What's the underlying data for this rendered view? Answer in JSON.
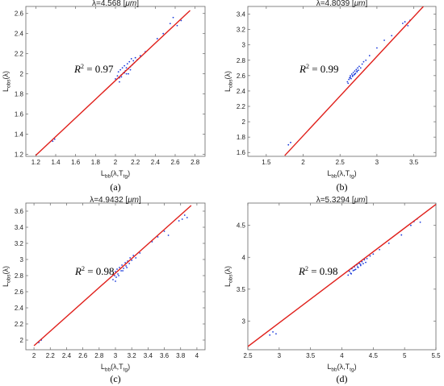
{
  "chart_data": [
    {
      "type": "scatter",
      "title_prefix": "λ=4.568",
      "title_unit": "μm",
      "xlabel": "L",
      "xlabel_sub": "bb",
      "xlabel_args": "(λ,T",
      "xlabel_args_sub": "tg",
      "ylabel": "L",
      "ylabel_sub": "obs",
      "ylabel_args": "(λ)",
      "xlim": [
        1.1,
        2.9
      ],
      "ylim": [
        1.18,
        2.67
      ],
      "xticks": [
        1.2,
        1.4,
        1.6,
        1.8,
        2,
        2.2,
        2.4,
        2.6,
        2.8
      ],
      "yticks": [
        1.2,
        1.4,
        1.6,
        1.8,
        2,
        2.2,
        2.4,
        2.6
      ],
      "xtick_labels": [
        "1.2",
        "1.4",
        "1.6",
        "1.8",
        "2",
        "2.2",
        "2.4",
        "2.6",
        "2.8"
      ],
      "ytick_labels": [
        "1.2",
        "1.4",
        "1.6",
        "1.8",
        "2",
        "2.2",
        "2.4",
        "2.6"
      ],
      "r2_label": "R",
      "r2_exp": "2",
      "r2_value": " = 0.97",
      "caption": "(a)",
      "fit_line": {
        "x": [
          1.2,
          2.75
        ],
        "y": [
          1.19,
          2.63
        ]
      },
      "series": [
        {
          "x": [
            1.37,
            1.39,
            2.0,
            2.02,
            2.03,
            2.04,
            2.05,
            2.06,
            2.07,
            2.08,
            2.09,
            2.1,
            2.11,
            2.12,
            2.13,
            2.14,
            2.15,
            2.16,
            2.17,
            2.18,
            2.19,
            2.2,
            2.22,
            2.25,
            2.3,
            2.42,
            2.48,
            2.55,
            2.58,
            2.62,
            2.66,
            2.04,
            2.06,
            2.09,
            2.11,
            2.13,
            2.15
          ],
          "y": [
            1.33,
            1.35,
            1.95,
            1.98,
            2.02,
            1.96,
            2.04,
            1.99,
            2.06,
            2.01,
            2.08,
            2.03,
            2.0,
            2.1,
            2.05,
            2.12,
            2.07,
            2.15,
            2.09,
            2.13,
            2.11,
            2.16,
            2.14,
            2.18,
            2.22,
            2.35,
            2.4,
            2.5,
            2.56,
            2.48,
            2.53,
            1.92,
            1.97,
            2.01,
            2.06,
            2.0,
            2.04
          ]
        }
      ]
    },
    {
      "type": "scatter",
      "title_prefix": "λ=4.8039",
      "title_unit": "μm",
      "xlabel": "L",
      "xlabel_sub": "bb",
      "xlabel_args": "(λ,T",
      "xlabel_args_sub": "tg",
      "ylabel": "L",
      "ylabel_sub": "obs",
      "ylabel_args": "(λ)",
      "xlim": [
        1.25,
        3.8
      ],
      "ylim": [
        1.55,
        3.5
      ],
      "xticks": [
        1.5,
        2,
        2.5,
        3,
        3.5
      ],
      "yticks": [
        1.6,
        1.8,
        2,
        2.2,
        2.4,
        2.6,
        2.8,
        3,
        3.2,
        3.4
      ],
      "xtick_labels": [
        "1.5",
        "2",
        "2.5",
        "3",
        "3.5"
      ],
      "ytick_labels": [
        "1.6",
        "1.8",
        "2",
        "2.2",
        "2.4",
        "2.6",
        "2.8",
        "3",
        "3.2",
        "3.4"
      ],
      "r2_label": "R",
      "r2_exp": "2",
      "r2_value": " = 0.99",
      "caption": "(b)",
      "fit_line": {
        "x": [
          1.75,
          3.63
        ],
        "y": [
          1.56,
          3.5
        ]
      },
      "series": [
        {
          "x": [
            1.8,
            1.83,
            2.6,
            2.62,
            2.63,
            2.64,
            2.65,
            2.66,
            2.67,
            2.68,
            2.69,
            2.7,
            2.71,
            2.72,
            2.73,
            2.74,
            2.75,
            2.76,
            2.78,
            2.8,
            2.82,
            2.85,
            2.9,
            3.0,
            3.1,
            3.2,
            3.35,
            3.38,
            3.42,
            3.45,
            2.61,
            2.64,
            2.67,
            2.7,
            2.73
          ],
          "y": [
            1.7,
            1.73,
            2.52,
            2.55,
            2.57,
            2.6,
            2.56,
            2.62,
            2.59,
            2.64,
            2.61,
            2.66,
            2.63,
            2.68,
            2.65,
            2.7,
            2.67,
            2.72,
            2.7,
            2.75,
            2.78,
            2.8,
            2.86,
            2.96,
            3.06,
            3.12,
            3.28,
            3.3,
            3.25,
            3.32,
            2.5,
            2.58,
            2.6,
            2.62,
            2.66
          ]
        }
      ]
    },
    {
      "type": "scatter",
      "title_prefix": "λ=4.9432",
      "title_unit": "μm",
      "xlabel": "L",
      "xlabel_sub": "bb",
      "xlabel_args": "(λ,T",
      "xlabel_args_sub": "tg",
      "ylabel": "L",
      "ylabel_sub": "obs",
      "ylabel_args": "(λ)",
      "xlim": [
        1.9,
        4.1
      ],
      "ylim": [
        1.88,
        3.7
      ],
      "xticks": [
        2,
        2.2,
        2.4,
        2.6,
        2.8,
        3,
        3.2,
        3.4,
        3.6,
        3.8,
        4
      ],
      "yticks": [
        2,
        2.2,
        2.4,
        2.6,
        2.8,
        3,
        3.2,
        3.4,
        3.6
      ],
      "xtick_labels": [
        "2",
        "2.2",
        "2.4",
        "2.6",
        "2.8",
        "3",
        "3.2",
        "3.4",
        "3.6",
        "3.8",
        "4"
      ],
      "ytick_labels": [
        "2",
        "2.2",
        "2.4",
        "2.6",
        "2.8",
        "3",
        "3.2",
        "3.4",
        "3.6"
      ],
      "r2_label": "R",
      "r2_exp": "2",
      "r2_value": " = 0.98",
      "caption": "(c)",
      "fit_line": {
        "x": [
          2.0,
          3.93
        ],
        "y": [
          1.93,
          3.67
        ]
      },
      "series": [
        {
          "x": [
            2.06,
            2.09,
            2.97,
            2.99,
            3.0,
            3.01,
            3.02,
            3.03,
            3.05,
            3.07,
            3.08,
            3.1,
            3.12,
            3.13,
            3.15,
            3.17,
            3.18,
            3.2,
            3.22,
            3.25,
            3.3,
            3.45,
            3.52,
            3.6,
            3.65,
            3.78,
            3.82,
            3.85,
            3.88,
            3.0,
            3.04,
            3.09,
            3.14
          ],
          "y": [
            1.97,
            2.0,
            2.75,
            2.8,
            2.85,
            2.78,
            2.88,
            2.82,
            2.9,
            2.86,
            2.93,
            2.89,
            2.96,
            2.92,
            2.98,
            2.95,
            3.02,
            2.99,
            3.05,
            3.02,
            3.08,
            3.22,
            3.28,
            3.35,
            3.3,
            3.48,
            3.5,
            3.55,
            3.52,
            2.73,
            2.8,
            2.86,
            2.9
          ]
        }
      ]
    },
    {
      "type": "scatter",
      "title_prefix": "λ=5.3294",
      "title_unit": "μm",
      "xlabel": "L",
      "xlabel_sub": "bb",
      "xlabel_args": "(λ,T",
      "xlabel_args_sub": "tg",
      "ylabel": "L",
      "ylabel_sub": "obs",
      "ylabel_args": "(λ)",
      "xlim": [
        2.5,
        5.5
      ],
      "ylim": [
        2.55,
        4.85
      ],
      "xticks": [
        2.5,
        3,
        3.5,
        4,
        4.5,
        5,
        5.5
      ],
      "yticks": [
        3,
        3.5,
        4,
        4.5
      ],
      "xtick_labels": [
        "2.5",
        "3",
        "3.5",
        "4",
        "4.5",
        "5",
        "5.5"
      ],
      "ytick_labels": [
        "3",
        "3.5",
        "4",
        "4.5"
      ],
      "r2_label": "R",
      "r2_exp": "2",
      "r2_value": " = 0.98",
      "caption": "(d)",
      "fit_line": {
        "x": [
          2.5,
          5.5
        ],
        "y": [
          2.6,
          4.83
        ]
      },
      "series": [
        {
          "x": [
            2.85,
            2.9,
            2.95,
            4.1,
            4.12,
            4.14,
            4.16,
            4.18,
            4.2,
            4.22,
            4.24,
            4.26,
            4.28,
            4.3,
            4.32,
            4.34,
            4.36,
            4.38,
            4.4,
            4.45,
            4.5,
            4.6,
            4.75,
            4.95,
            5.1,
            5.15,
            5.2,
            5.25,
            4.15,
            4.2,
            4.25,
            4.3
          ],
          "y": [
            2.78,
            2.83,
            2.8,
            3.72,
            3.78,
            3.75,
            3.82,
            3.79,
            3.85,
            3.81,
            3.88,
            3.84,
            3.9,
            3.87,
            3.93,
            3.9,
            3.96,
            3.92,
            3.98,
            4.02,
            4.05,
            4.12,
            4.22,
            4.35,
            4.5,
            4.56,
            4.6,
            4.55,
            3.74,
            3.8,
            3.85,
            3.89
          ]
        }
      ]
    }
  ],
  "colors": {
    "fit": "#e0201b",
    "points": "#1a3adb",
    "axes": "#666666"
  }
}
